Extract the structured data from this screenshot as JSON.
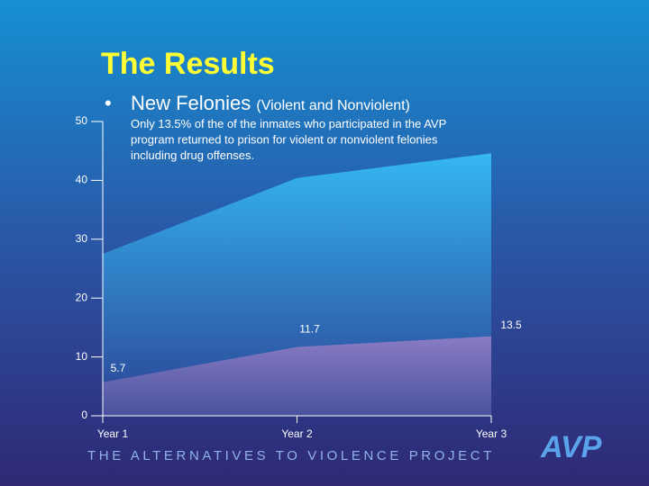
{
  "slide": {
    "title": "The Results",
    "bullet_heading": "New Felonies",
    "bullet_note": "(Violent and Nonviolent)",
    "body": [
      "Only 13.5% of the of the inmates who participated in the AVP",
      "program returned to prison for violent or nonviolent felonies",
      "including drug offenses."
    ],
    "footer": "THE ALTERNATIVES TO VIOLENCE PROJECT",
    "logo": "AVP"
  },
  "chart_data": {
    "type": "area",
    "categories": [
      "Year 1",
      "Year 2",
      "Year 3"
    ],
    "series": [
      {
        "color": "#35b8f2",
        "values": [
          27.5,
          40.4,
          44.6
        ]
      },
      {
        "color": "#8a7cc4",
        "values": [
          5.7,
          11.7,
          13.5
        ]
      }
    ],
    "data_labels_series": 1,
    "ylim": [
      0,
      50
    ],
    "yticks": [
      0,
      10,
      20,
      30,
      40,
      50
    ]
  }
}
